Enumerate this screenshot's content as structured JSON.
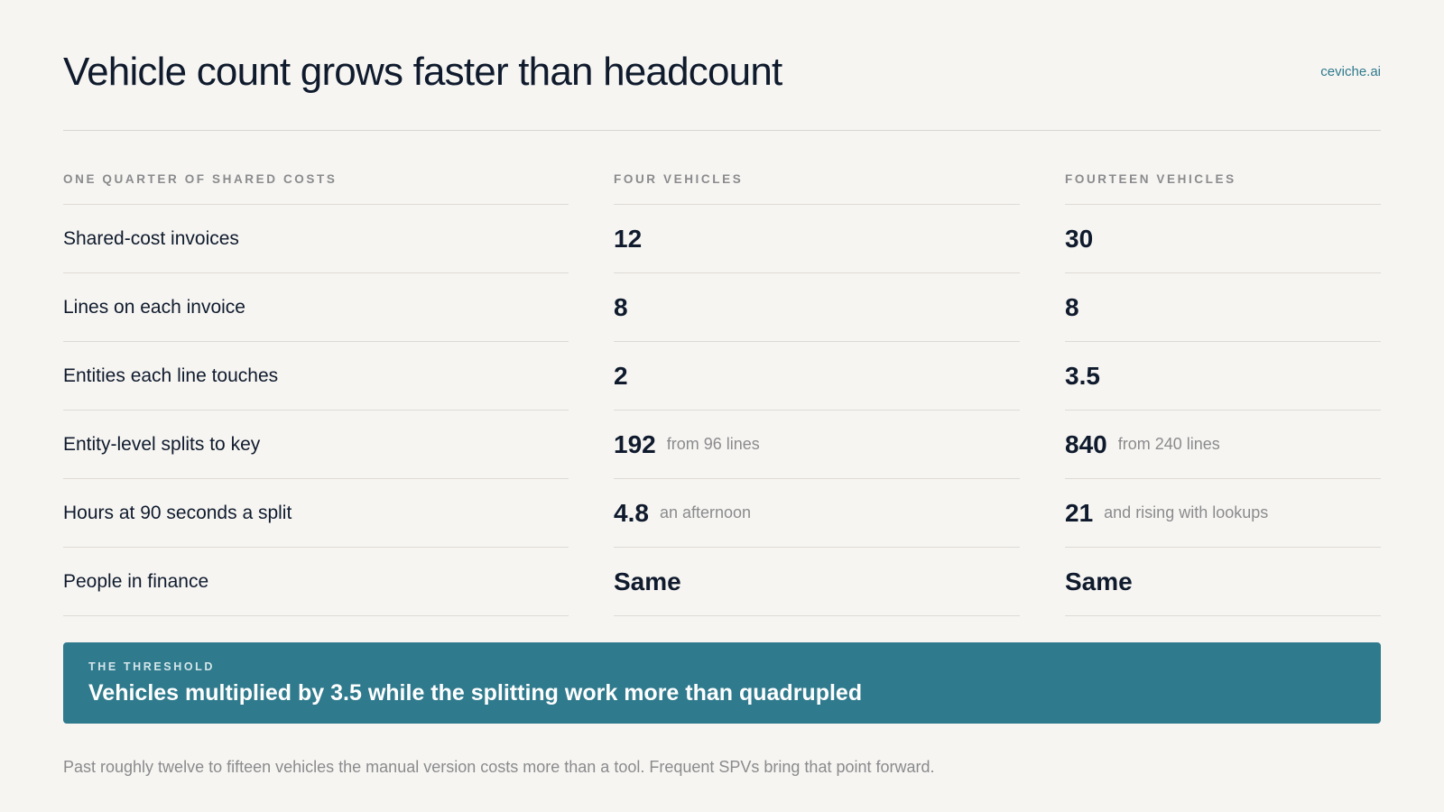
{
  "header": {
    "title": "Vehicle count grows faster than headcount",
    "brand": "ceviche.ai"
  },
  "table": {
    "columns": [
      "One quarter of shared costs",
      "Four vehicles",
      "Fourteen vehicles"
    ],
    "rows": [
      {
        "label": "Shared-cost invoices",
        "four": {
          "value": "12",
          "note": ""
        },
        "fourteen": {
          "value": "30",
          "note": ""
        }
      },
      {
        "label": "Lines on each invoice",
        "four": {
          "value": "8",
          "note": ""
        },
        "fourteen": {
          "value": "8",
          "note": ""
        }
      },
      {
        "label": "Entities each line touches",
        "four": {
          "value": "2",
          "note": ""
        },
        "fourteen": {
          "value": "3.5",
          "note": ""
        }
      },
      {
        "label": "Entity-level splits to key",
        "four": {
          "value": "192",
          "note": "from 96 lines"
        },
        "fourteen": {
          "value": "840",
          "note": "from 240 lines"
        }
      },
      {
        "label": "Hours at 90 seconds a split",
        "four": {
          "value": "4.8",
          "note": "an afternoon"
        },
        "fourteen": {
          "value": "21",
          "note": "and rising with lookups"
        }
      },
      {
        "label": "People in finance",
        "four": {
          "value": "Same",
          "note": ""
        },
        "fourteen": {
          "value": "Same",
          "note": ""
        }
      }
    ]
  },
  "callout": {
    "kicker": "The threshold",
    "text": "Vehicles multiplied by 3.5 while the splitting work more than quadrupled"
  },
  "footnote": "Past roughly twelve to fifteen vehicles the manual version costs more than a tool. Frequent SPVs bring that point forward."
}
